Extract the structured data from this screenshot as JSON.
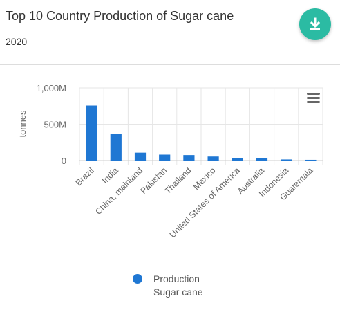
{
  "header": {
    "title": "Top 10 Country Production of Sugar cane",
    "subtitle": "2020",
    "download_icon": "download-icon"
  },
  "menu_icon": "hamburger-menu-icon",
  "colors": {
    "bar": "#1f77d3",
    "download_button": "#2bbba3",
    "grid": "#e6e6e6"
  },
  "chart_data": {
    "type": "bar",
    "title": "Top 10 Country Production of Sugar cane",
    "subtitle": "2020",
    "ylabel": "tonnes",
    "xlabel": "",
    "ylim": [
      0,
      1000000000
    ],
    "yticks": [
      0,
      500000000,
      1000000000
    ],
    "yticklabels": [
      "0",
      "500M",
      "1,000M"
    ],
    "grid": true,
    "categories": [
      "Brazil",
      "India",
      "China, mainland",
      "Pakistan",
      "Thailand",
      "Mexico",
      "United States of America",
      "Australia",
      "Indonesia",
      "Guatemala"
    ],
    "series": [
      {
        "name": "Production Sugar cane",
        "values": [
          757000000,
          370000000,
          108000000,
          81000000,
          75000000,
          55000000,
          32000000,
          30000000,
          15000000,
          10000000
        ]
      }
    ],
    "legend": {
      "position": "bottom",
      "lines": [
        "Production",
        "Sugar cane"
      ]
    }
  }
}
